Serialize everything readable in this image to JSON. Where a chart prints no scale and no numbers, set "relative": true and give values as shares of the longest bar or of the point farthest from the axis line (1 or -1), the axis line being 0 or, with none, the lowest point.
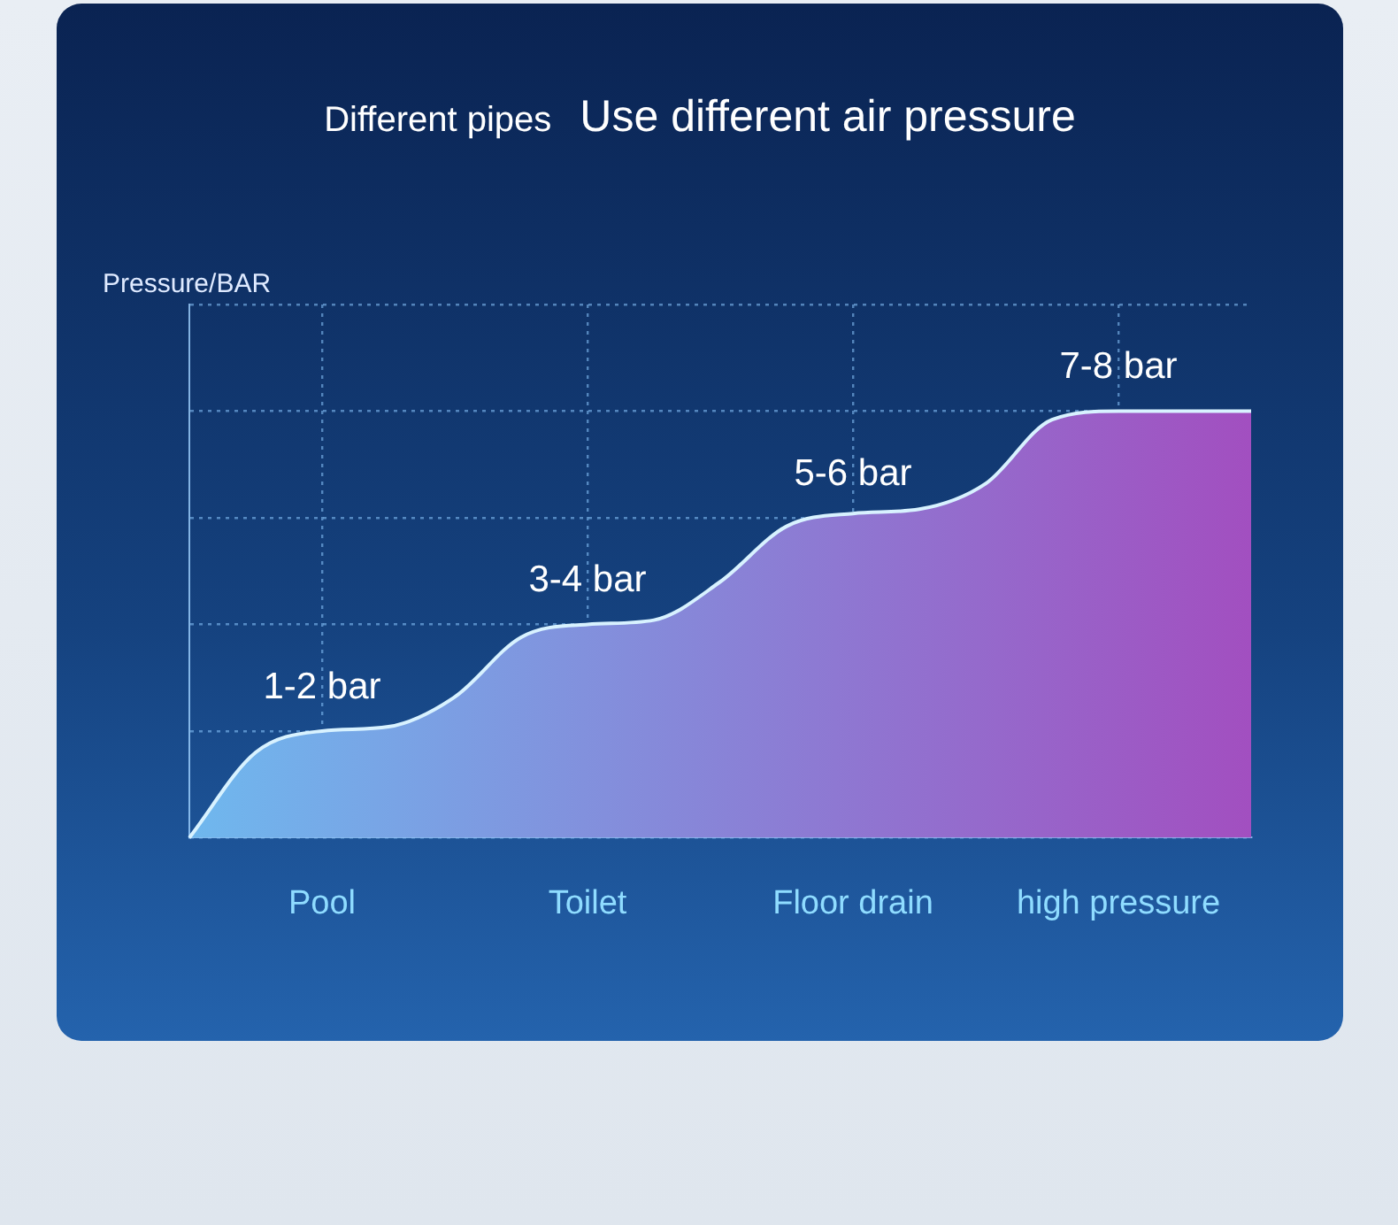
{
  "chart_data": {
    "type": "area",
    "title": "Different pipes",
    "subtitle": "Use different air pressure",
    "ylabel": "Pressure/BAR",
    "relative": true,
    "grid": true,
    "legend": false,
    "categories": [
      null,
      null,
      "Pool",
      null,
      null,
      null,
      "Toilet",
      null,
      null,
      null,
      "Floor drain",
      null,
      null,
      null,
      "high pressure",
      null,
      null
    ],
    "series": [
      {
        "color": "#a24fc0",
        "values": [
          0,
          0.2,
          0.25,
          0.26,
          0.33,
          0.47,
          0.5,
          0.51,
          0.6,
          0.73,
          0.76,
          0.77,
          0.83,
          0.98,
          1,
          1,
          1
        ]
      }
    ],
    "annotations": [
      {
        "text": "1-2 bar",
        "x": "Pool",
        "y": 0.25
      },
      {
        "text": "3-4 bar",
        "x": "Toilet",
        "y": 0.5
      },
      {
        "text": "5-6 bar",
        "x": "Floor drain",
        "y": 0.75
      },
      {
        "text": "7-8 bar",
        "x": "high pressure",
        "y": 1
      }
    ]
  }
}
